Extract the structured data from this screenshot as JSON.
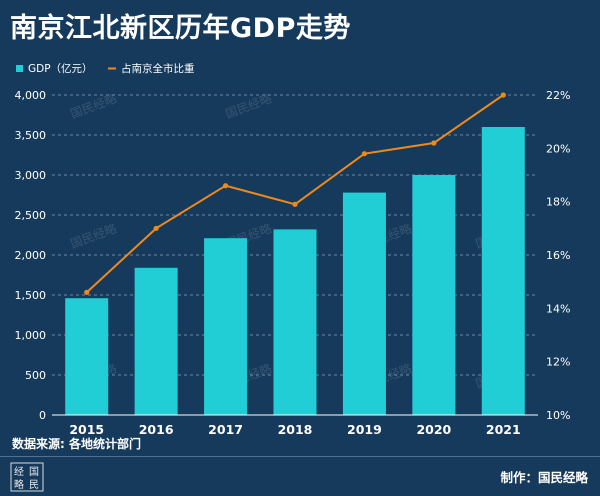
{
  "title": "南京江北新区历年GDP走势",
  "source": "数据来源: 各地统计部门",
  "credit": "制作：国民经略",
  "logo_text": "经略国民",
  "watermark": "国民经略",
  "colors": {
    "background": "#163a5c",
    "bar": "#22ced6",
    "line": "#ee8a1c",
    "grid": "#7f9ab3",
    "watermark_stamp": "#b8322c"
  },
  "chart_data": {
    "type": "bar",
    "title": "",
    "xlabel": "",
    "ylabel": "",
    "categories": [
      "2015",
      "2016",
      "2017",
      "2018",
      "2019",
      "2020",
      "2021"
    ],
    "series": [
      {
        "name": "GDP（亿元）",
        "type": "bar",
        "axis": "left",
        "values": [
          1460,
          1840,
          2210,
          2320,
          2780,
          3000,
          3600
        ]
      },
      {
        "name": "占南京全市比重",
        "type": "line",
        "axis": "right",
        "unit": "%",
        "values": [
          14.6,
          17.0,
          18.6,
          17.9,
          19.8,
          20.2,
          22.0
        ]
      }
    ],
    "ylim": [
      0,
      4000
    ],
    "y_ticks": [
      "0",
      "500",
      "1,000",
      "1,500",
      "2,000",
      "2,500",
      "3,000",
      "3,500",
      "4,000"
    ],
    "y2lim": [
      10,
      22
    ],
    "y2_ticks": [
      "10%",
      "12%",
      "14%",
      "16%",
      "18%",
      "20%",
      "22%"
    ],
    "grid": true,
    "legend_position": "top-left"
  }
}
